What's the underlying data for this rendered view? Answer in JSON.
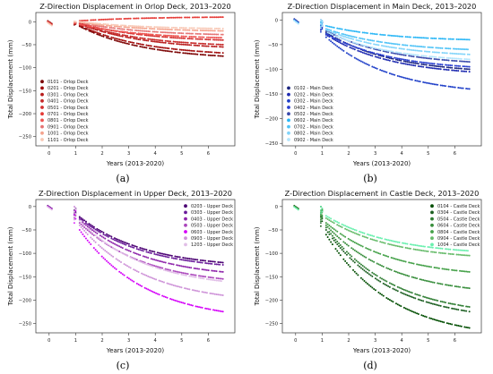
{
  "chart_data": [
    {
      "id": "a",
      "type": "scatter",
      "caption": "(a)",
      "title": "Z-Direction Displacement in Orlop Deck, 2013–2020",
      "xlabel": "Years (2013-2020)",
      "ylabel": "Total Displacement (mm)",
      "xlim": [
        -0.5,
        7.0
      ],
      "ylim": [
        -270,
        20
      ],
      "xticks": [
        0,
        1,
        2,
        3,
        4,
        5,
        6
      ],
      "xtick_labels": [
        "0",
        "1",
        "2",
        "3",
        "4",
        "5",
        "6"
      ],
      "yticks": [
        0,
        -50,
        -100,
        -150,
        -200,
        -250
      ],
      "ytick_labels": [
        "0",
        "−50",
        "−100",
        "−150",
        "−200",
        "−250"
      ],
      "legend_position": "bottom-left",
      "series": [
        {
          "name": "0101 - Orlop Deck",
          "color": "#7a0000",
          "y1": -10,
          "end": -75
        },
        {
          "name": "0201 - Orlop Deck",
          "color": "#a10b0b",
          "y1": -8,
          "end": -68
        },
        {
          "name": "0301 - Orlop Deck",
          "color": "#b71c1c",
          "y1": -5,
          "end": -55
        },
        {
          "name": "0401 - Orlop Deck",
          "color": "#c62828",
          "y1": -4,
          "end": -50
        },
        {
          "name": "0501 - Orlop Deck",
          "color": "#d32f2f",
          "y1": -3,
          "end": -40
        },
        {
          "name": "0701 - Orlop Deck",
          "color": "#e53935",
          "y1": 2,
          "end": 10
        },
        {
          "name": "0801 - Orlop Deck",
          "color": "#ef5350",
          "y1": -6,
          "end": -35
        },
        {
          "name": "0901 - Orlop Deck",
          "color": "#e57373",
          "y1": -2,
          "end": -28
        },
        {
          "name": "1001 - Orlop Deck",
          "color": "#f4a38d",
          "y1": -1,
          "end": -20
        },
        {
          "name": "1101 - Orlop Deck",
          "color": "#f8c8b5",
          "y1": 0,
          "end": -15
        }
      ]
    },
    {
      "id": "b",
      "type": "scatter",
      "caption": "(b)",
      "title": "Z-Direction Displacement in Main Deck, 2013–2020",
      "xlabel": "Years (2013-2020)",
      "ylabel": "Total Displacement (mm)",
      "xlim": [
        -0.5,
        7.0
      ],
      "ylim": [
        -255,
        15
      ],
      "xticks": [
        0,
        1,
        2,
        3,
        4,
        5,
        6
      ],
      "xtick_labels": [
        "0",
        "1",
        "2",
        "3",
        "4",
        "5",
        "6"
      ],
      "yticks": [
        0,
        -50,
        -100,
        -150,
        -200,
        -250
      ],
      "ytick_labels": [
        "0",
        "−50",
        "−100",
        "−150",
        "−200",
        "−250"
      ],
      "legend_position": "bottom-left",
      "series": [
        {
          "name": "0102 - Main Deck",
          "color": "#1a237e",
          "y1": -25,
          "end": -100
        },
        {
          "name": "0202 - Main Deck",
          "color": "#1e2ab0",
          "y1": -30,
          "end": -105
        },
        {
          "name": "0302 - Main Deck",
          "color": "#1f3fc8",
          "y1": -35,
          "end": -140
        },
        {
          "name": "0402 - Main Deck",
          "color": "#2a3fd0",
          "y1": -28,
          "end": -95
        },
        {
          "name": "0502 - Main Deck",
          "color": "#3949ab",
          "y1": -22,
          "end": -85
        },
        {
          "name": "0602 - Main Deck",
          "color": "#29b6f6",
          "y1": -12,
          "end": -40
        },
        {
          "name": "0702 - Main Deck",
          "color": "#4fc3f7",
          "y1": -18,
          "end": -60
        },
        {
          "name": "0802 - Main Deck",
          "color": "#81d4fa",
          "y1": -20,
          "end": -70
        },
        {
          "name": "0902 - Main Deck",
          "color": "#b3e5fc",
          "y1": -24,
          "end": -80
        }
      ]
    },
    {
      "id": "c",
      "type": "scatter",
      "caption": "(c)",
      "title": "Z-Direction Displacement in Upper Deck, 2013–2020",
      "xlabel": "Years (2013-2020)",
      "ylabel": "Total Displacement (mm)",
      "xlim": [
        -0.5,
        7.0
      ],
      "ylim": [
        -270,
        15
      ],
      "xticks": [
        0,
        1,
        2,
        3,
        4,
        5,
        6
      ],
      "xtick_labels": [
        "0",
        "1",
        "2",
        "3",
        "4",
        "5",
        "6"
      ],
      "yticks": [
        0,
        -50,
        -100,
        -150,
        -200,
        -250
      ],
      "ytick_labels": [
        "0",
        "−50",
        "−100",
        "−150",
        "−200",
        "−250"
      ],
      "legend_position": "top-right",
      "series": [
        {
          "name": "0203 - Upper Deck",
          "color": "#4a0072",
          "y1": -22,
          "end": -120
        },
        {
          "name": "0303 - Upper Deck",
          "color": "#6a1b9a",
          "y1": -25,
          "end": -125
        },
        {
          "name": "0403 - Upper Deck",
          "color": "#8e24aa",
          "y1": -28,
          "end": -140
        },
        {
          "name": "0503 - Upper Deck",
          "color": "#ab47bc",
          "y1": -35,
          "end": -155
        },
        {
          "name": "0603 - Upper Deck",
          "color": "#d500f9",
          "y1": -50,
          "end": -225
        },
        {
          "name": "0903 - Upper Deck",
          "color": "#ce93d8",
          "y1": -40,
          "end": -190
        },
        {
          "name": "1203 - Upper Deck",
          "color": "#e1bee7",
          "y1": -30,
          "end": -160
        }
      ]
    },
    {
      "id": "d",
      "type": "scatter",
      "caption": "(d)",
      "title": "Z-Direction Displacement in Castle Deck, 2013–2020",
      "xlabel": "Years (2013-2020)",
      "ylabel": "Total Displacement (mm)",
      "xlim": [
        -0.5,
        7.0
      ],
      "ylim": [
        -270,
        15
      ],
      "xticks": [
        0,
        1,
        2,
        3,
        4,
        5,
        6
      ],
      "xtick_labels": [
        "0",
        "1",
        "2",
        "3",
        "4",
        "5",
        "6"
      ],
      "yticks": [
        0,
        -50,
        -100,
        -150,
        -200,
        -250
      ],
      "ytick_labels": [
        "0",
        "−50",
        "−100",
        "−150",
        "−200",
        "−250"
      ],
      "legend_position": "top-right",
      "series": [
        {
          "name": "0104 - Castle Deck",
          "color": "#004d00",
          "y1": -60,
          "end": -260
        },
        {
          "name": "0304 - Castle Deck",
          "color": "#1b5e20",
          "y1": -50,
          "end": -225
        },
        {
          "name": "0504 - Castle Deck",
          "color": "#2e7d32",
          "y1": -45,
          "end": -215
        },
        {
          "name": "0604 - Castle Deck",
          "color": "#388e3c",
          "y1": -40,
          "end": -175
        },
        {
          "name": "0804 - Castle Deck",
          "color": "#43a047",
          "y1": -35,
          "end": -140
        },
        {
          "name": "0904 - Castle Deck",
          "color": "#66bb6a",
          "y1": -25,
          "end": -105
        },
        {
          "name": "1004 - Castle Deck",
          "color": "#69f0ae",
          "y1": -20,
          "end": -95
        }
      ]
    }
  ]
}
